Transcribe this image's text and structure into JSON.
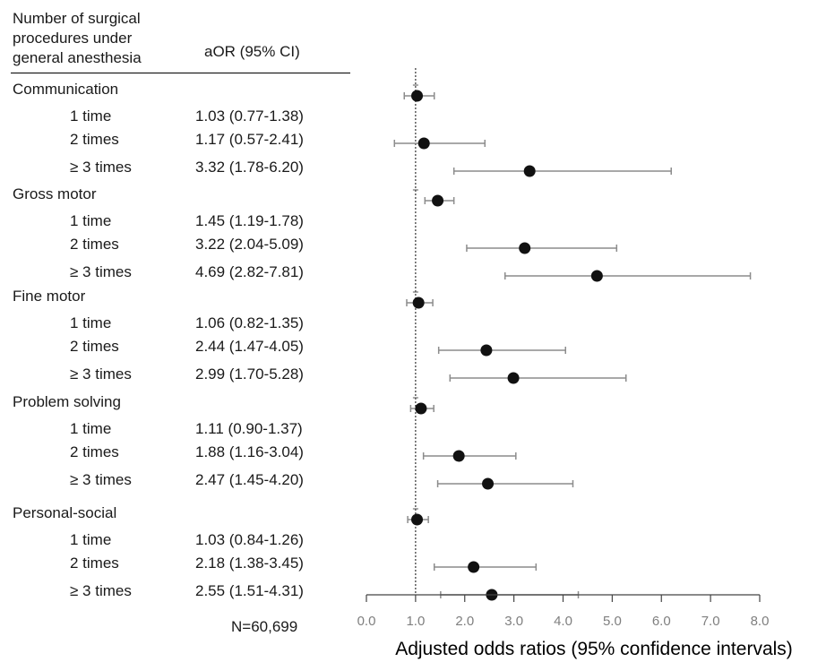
{
  "header": {
    "col1_line1": "Number of surgical",
    "col1_line2": "procedures under",
    "col1_line3": "general anesthesia",
    "col2": "aOR (95% CI)"
  },
  "footer": {
    "n_label": "N=60,699"
  },
  "chart_data": {
    "type": "forest",
    "xlabel": "Adjusted odds ratios (95% confidence intervals)",
    "xlim": [
      0.0,
      8.0
    ],
    "xticks": [
      "0.0",
      "1.0",
      "2.0",
      "3.0",
      "4.0",
      "5.0",
      "6.0",
      "7.0",
      "8.0"
    ],
    "reference_line": 1.0,
    "groups": [
      {
        "name": "Communication",
        "rows": [
          {
            "label": "1 time",
            "text": "1.03 (0.77-1.38)",
            "or": 1.03,
            "lo": 0.77,
            "hi": 1.38
          },
          {
            "label": "2 times",
            "text": "1.17 (0.57-2.41)",
            "or": 1.17,
            "lo": 0.57,
            "hi": 2.41
          },
          {
            "label": "≥ 3 times",
            "text": "3.32 (1.78-6.20)",
            "or": 3.32,
            "lo": 1.78,
            "hi": 6.2
          }
        ]
      },
      {
        "name": "Gross motor",
        "rows": [
          {
            "label": "1 time",
            "text": "1.45 (1.19-1.78)",
            "or": 1.45,
            "lo": 1.19,
            "hi": 1.78
          },
          {
            "label": "2 times",
            "text": "3.22 (2.04-5.09)",
            "or": 3.22,
            "lo": 2.04,
            "hi": 5.09
          },
          {
            "label": "≥ 3 times",
            "text": "4.69 (2.82-7.81)",
            "or": 4.69,
            "lo": 2.82,
            "hi": 7.81
          }
        ]
      },
      {
        "name": "Fine motor",
        "rows": [
          {
            "label": "1 time",
            "text": "1.06 (0.82-1.35)",
            "or": 1.06,
            "lo": 0.82,
            "hi": 1.35
          },
          {
            "label": "2 times",
            "text": "2.44 (1.47-4.05)",
            "or": 2.44,
            "lo": 1.47,
            "hi": 4.05
          },
          {
            "label": "≥ 3 times",
            "text": "2.99 (1.70-5.28)",
            "or": 2.99,
            "lo": 1.7,
            "hi": 5.28
          }
        ]
      },
      {
        "name": "Problem solving",
        "rows": [
          {
            "label": "1 time",
            "text": "1.11 (0.90-1.37)",
            "or": 1.11,
            "lo": 0.9,
            "hi": 1.37
          },
          {
            "label": "2 times",
            "text": "1.88 (1.16-3.04)",
            "or": 1.88,
            "lo": 1.16,
            "hi": 3.04
          },
          {
            "label": "≥ 3 times",
            "text": "2.47 (1.45-4.20)",
            "or": 2.47,
            "lo": 1.45,
            "hi": 4.2
          }
        ]
      },
      {
        "name": "Personal-social",
        "rows": [
          {
            "label": "1 time",
            "text": "1.03 (0.84-1.26)",
            "or": 1.03,
            "lo": 0.84,
            "hi": 1.26
          },
          {
            "label": "2 times",
            "text": "2.18 (1.38-3.45)",
            "or": 2.18,
            "lo": 1.38,
            "hi": 3.45
          },
          {
            "label": "≥ 3 times",
            "text": "2.55 (1.51-4.31)",
            "or": 2.55,
            "lo": 1.51,
            "hi": 4.31
          }
        ]
      }
    ]
  }
}
